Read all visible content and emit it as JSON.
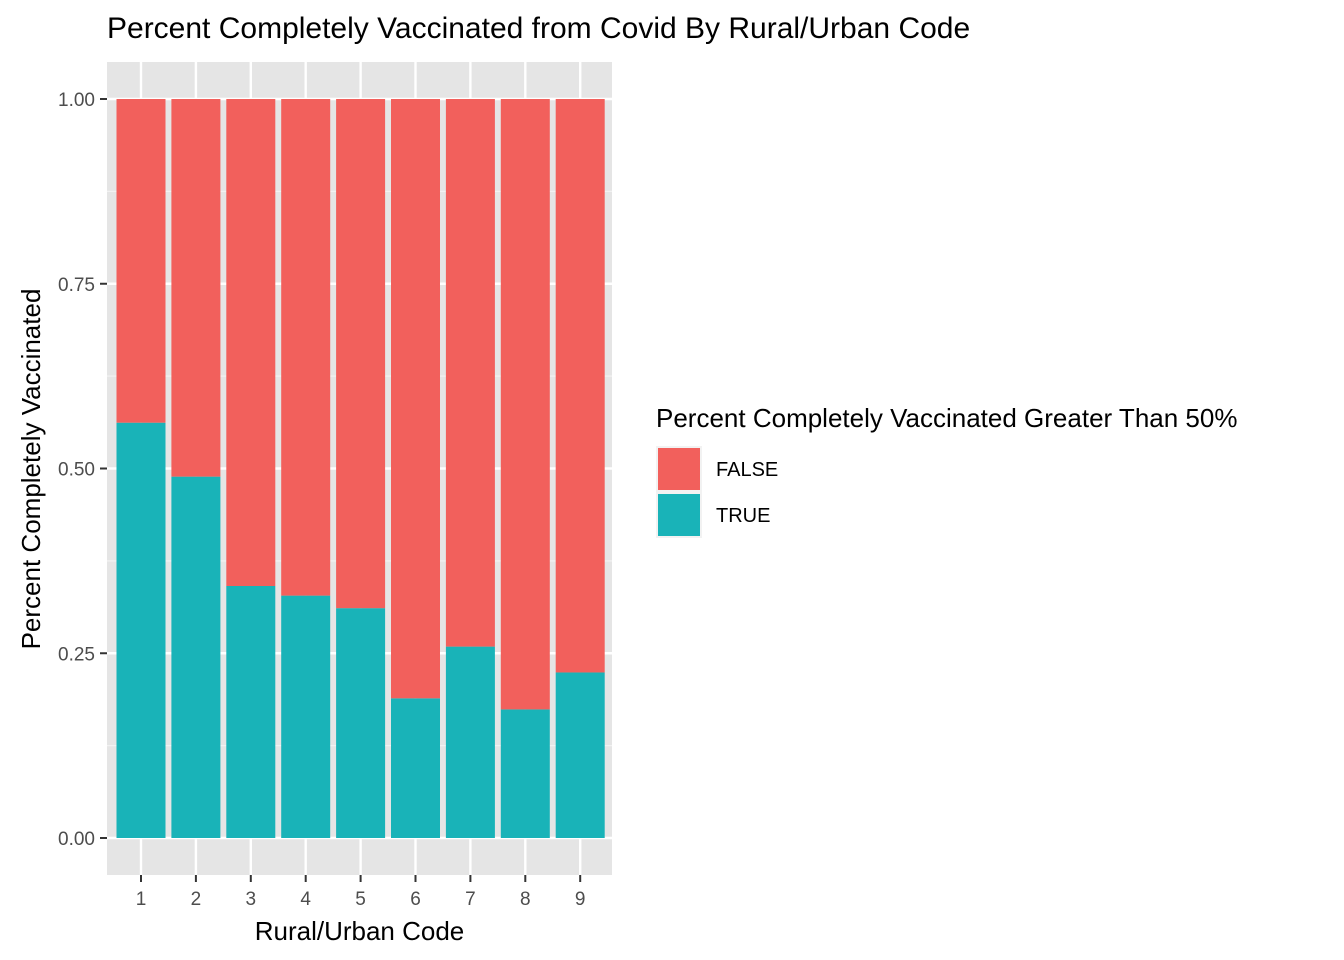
{
  "chart_data": {
    "type": "bar",
    "stacked": true,
    "title": "Percent Completely Vaccinated from Covid By Rural/Urban Code",
    "xlabel": "Rural/Urban Code",
    "ylabel": "Percent Completely Vaccinated",
    "categories": [
      "1",
      "2",
      "3",
      "4",
      "5",
      "6",
      "7",
      "8",
      "9"
    ],
    "ylim": [
      0,
      1
    ],
    "yticks": [
      "0.00",
      "0.25",
      "0.50",
      "0.75",
      "1.00"
    ],
    "ytick_values": [
      0,
      0.25,
      0.5,
      0.75,
      1.0
    ],
    "grid": true,
    "legend": {
      "title": "Percent Completely Vaccinated Greater Than 50%",
      "placement": "right"
    },
    "series": [
      {
        "name": "TRUE",
        "color": "#19b3b8",
        "values": [
          0.562,
          0.489,
          0.341,
          0.328,
          0.311,
          0.189,
          0.259,
          0.174,
          0.224
        ]
      },
      {
        "name": "FALSE",
        "color": "#f2605c",
        "values": [
          0.438,
          0.511,
          0.659,
          0.672,
          0.689,
          0.811,
          0.741,
          0.826,
          0.776
        ]
      }
    ],
    "legend_order": [
      "FALSE",
      "TRUE"
    ]
  }
}
